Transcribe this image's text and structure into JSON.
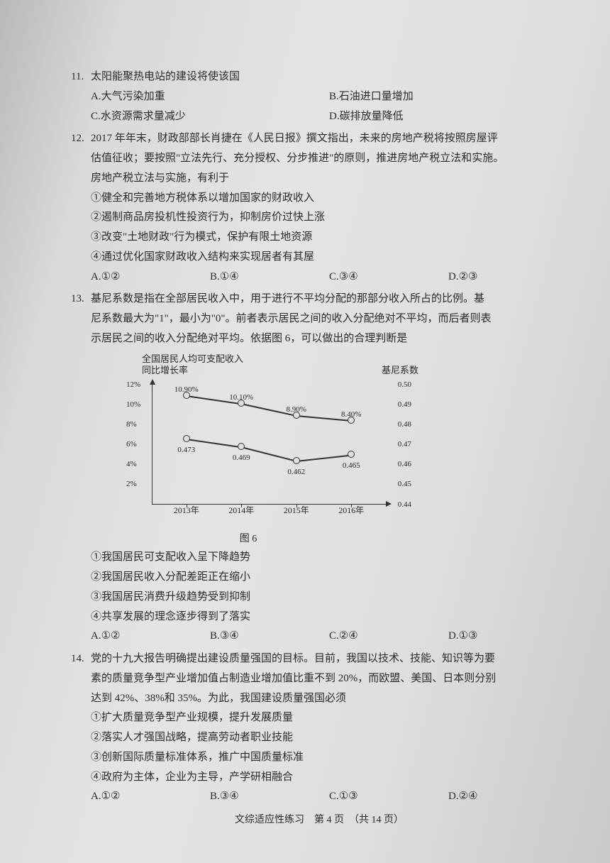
{
  "q11": {
    "num": "11.",
    "stem": "太阳能聚热电站的建设将使该国",
    "A": "A.大气污染加重",
    "B": "B.石油进口量增加",
    "C": "C.水资源需求量减少",
    "D": "D.碳排放量降低"
  },
  "q12": {
    "num": "12.",
    "stem1": "2017 年年末，财政部部长肖捷在《人民日报》撰文指出，未来的房地产税将按照房屋评",
    "stem2": "估值征收；要按照\"立法先行、充分授权、分步推进\"的原则，推进房地产税立法和实施。",
    "stem3": "房地产税立法与实施，有利于",
    "s1": "①健全和完善地方税体系以增加国家的财政收入",
    "s2": "②遏制商品房投机性投资行为，抑制房价过快上涨",
    "s3": "③改变\"土地财政\"行为模式，保护有限土地资源",
    "s4": "④通过优化国家财政收入结构来实现居者有其屋",
    "A": "A.①②",
    "B": "B.①④",
    "C": "C.③④",
    "D": "D.②③"
  },
  "q13": {
    "num": "13.",
    "stem1": "基尼系数是指在全部居民收入中，用于进行不平均分配的那部分收入所占的比例。基",
    "stem2": "尼系数最大为\"1\"，最小为\"0\"。前者表示居民之间的收入分配绝对不平均，而后者则表",
    "stem3": "示居民之间的收入分配绝对平均。依据图 6，可以做出的合理判断是",
    "s1": "①我国居民可支配收入呈下降趋势",
    "s2": "②我国居民收入分配差距正在缩小",
    "s3": "③我国居民消费升级趋势受到抑制",
    "s4": "④共享发展的理念逐步得到了落实",
    "A": "A.①②",
    "B": "B.③④",
    "C": "C.②④",
    "D": "D.①③"
  },
  "chart": {
    "title_left_1": "全国居民人均可支配收入",
    "title_left_2": "同比增长率",
    "title_right": "基尼系数",
    "caption": "图 6",
    "left_axis": {
      "ticks": [
        "12%",
        "10%",
        "8%",
        "6%",
        "4%",
        "2%"
      ],
      "max": 12,
      "min": 0
    },
    "right_axis": {
      "ticks": [
        "0.50",
        "0.49",
        "0.48",
        "0.47",
        "0.46",
        "0.45",
        "0.44"
      ],
      "max": 0.5,
      "min": 0.44
    },
    "x_labels": [
      "2013年",
      "2014年",
      "2015年",
      "2016年"
    ],
    "series_growth": {
      "values": [
        10.9,
        10.1,
        8.9,
        8.4
      ],
      "labels": [
        "10.90%",
        "10.10%",
        "8.90%",
        "8.40%"
      ]
    },
    "series_gini": {
      "values": [
        0.473,
        0.469,
        0.462,
        0.465
      ],
      "labels": [
        "0.473",
        "0.469",
        "0.462",
        "0.465"
      ]
    },
    "colors": {
      "axis": "#333333",
      "line": "#333333",
      "marker_fill": "#e0e1dd",
      "text": "#2a2a2a"
    }
  },
  "q14": {
    "num": "14.",
    "stem1": "党的十九大报告明确提出建设质量强国的目标。目前，我国以技术、技能、知识等为要",
    "stem2": "素的质量竞争型产业增加值占制造业增加值比重不到 20%，而欧盟、美国、日本则分别",
    "stem3": "达到 42%、38%和 35%。为此，我国建设质量强国必须",
    "s1": "①扩大质量竞争型产业规模，提升发展质量",
    "s2": "②落实人才强国战略，提高劳动者职业技能",
    "s3": "③创新国际质量标准体系，推广中国质量标准",
    "s4": "④政府为主体，企业为主导，产学研相融合",
    "A": "A.①②",
    "B": "B.③④",
    "C": "C.①③",
    "D": "D.②④"
  },
  "footer": "文综适应性练习　第 4 页　（共 14 页）"
}
